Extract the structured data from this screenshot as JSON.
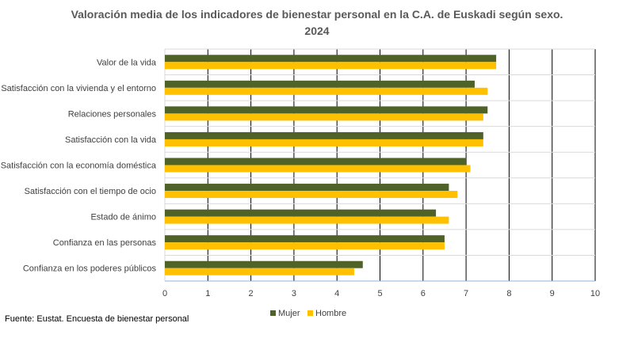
{
  "chart_data": {
    "type": "bar",
    "orientation": "horizontal",
    "title_line1": "Valoración media de los indicadores de bienestar personal en la C.A. de Euskadi según sexo.",
    "title_line2": "2024",
    "categories": [
      "Valor de la vida",
      "Satisfacción con la vivienda y el entorno",
      "Relaciones personales",
      "Satisfacción con la vida",
      "Satisfacción con la economía doméstica",
      "Satisfacción con el tiempo de ocio",
      "Estado de ánimo",
      "Confianza en las personas",
      "Confianza en los poderes públicos"
    ],
    "series": [
      {
        "name": "Mujer",
        "color": "#4f6228",
        "values": [
          7.7,
          7.2,
          7.5,
          7.4,
          7.0,
          6.6,
          6.3,
          6.5,
          4.6
        ]
      },
      {
        "name": "Hombre",
        "color": "#ffc000",
        "values": [
          7.7,
          7.5,
          7.4,
          7.4,
          7.1,
          6.8,
          6.6,
          6.5,
          4.4
        ]
      }
    ],
    "xlim": [
      0,
      10
    ],
    "xticks": [
      "0",
      "1",
      "2",
      "3",
      "4",
      "5",
      "6",
      "7",
      "8",
      "9",
      "10"
    ],
    "grid": true,
    "legend_position": "bottom-center"
  },
  "source": "Fuente: Eustat. Encuesta de bienestar personal"
}
